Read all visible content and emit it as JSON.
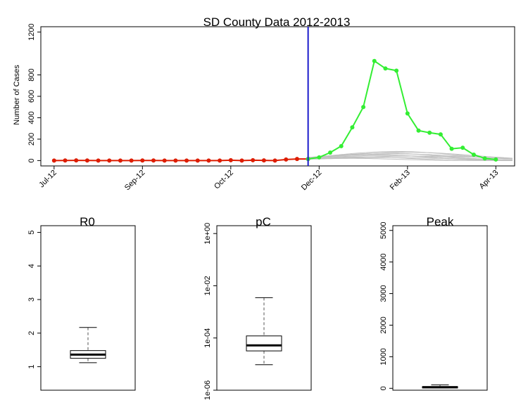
{
  "chart_data": [
    {
      "type": "line",
      "title": "SD County Data 2012-2013",
      "ylabel": "Number of Cases",
      "xlabel": "",
      "ylim": [
        -50,
        1250
      ],
      "yticks": [
        0,
        200,
        400,
        600,
        800,
        1200
      ],
      "x_tick_labels": [
        "Jul-12",
        "Sep-12",
        "Oct-12",
        "Dec-12",
        "Feb-13",
        "Apr-13"
      ],
      "x_tick_weeks": [
        0,
        8,
        16,
        24,
        32,
        40
      ],
      "x_range_weeks": [
        -1.2,
        41.7
      ],
      "cutoff_week": 23,
      "colors": {
        "observed": "#dd1c00",
        "future": "#33ee33",
        "cutoff": "#1a1acc",
        "projections": "#c0c0c0"
      },
      "series": [
        {
          "x": [
            0,
            1,
            2,
            3,
            4,
            5,
            6,
            7,
            8,
            9,
            10,
            11,
            12,
            13,
            14,
            15,
            16,
            17,
            18,
            19,
            20,
            21,
            22,
            23
          ],
          "values": [
            0,
            1,
            2,
            1,
            0,
            0,
            0,
            0,
            1,
            1,
            0,
            0,
            0,
            0,
            0,
            0,
            3,
            0,
            3,
            2,
            0,
            10,
            15,
            15
          ],
          "color": "#dd1c00"
        },
        {
          "x": [
            23,
            24,
            25,
            26,
            27,
            28,
            29,
            30,
            31,
            32,
            33,
            34,
            35,
            36,
            37,
            38,
            39,
            40
          ],
          "values": [
            15,
            30,
            75,
            135,
            310,
            500,
            930,
            860,
            840,
            440,
            280,
            260,
            245,
            110,
            120,
            55,
            20,
            10
          ],
          "color": "#33ee33"
        }
      ],
      "projections": [
        {
          "peak_week": 31,
          "peak": 85,
          "width": 5.5
        },
        {
          "peak_week": 32,
          "peak": 78,
          "width": 6.0
        },
        {
          "peak_week": 30,
          "peak": 70,
          "width": 5.0
        },
        {
          "peak_week": 31,
          "peak": 62,
          "width": 6.5
        },
        {
          "peak_week": 29,
          "peak": 55,
          "width": 4.5
        },
        {
          "peak_week": 30,
          "peak": 48,
          "width": 5.5
        },
        {
          "peak_week": 33,
          "peak": 42,
          "width": 7.0
        },
        {
          "peak_week": 28,
          "peak": 35,
          "width": 4.0
        },
        {
          "peak_week": 30,
          "peak": 28,
          "width": 6.0
        },
        {
          "peak_week": 27,
          "peak": 20,
          "width": 4.0
        }
      ]
    },
    {
      "type": "box",
      "title": "R0",
      "ylim": [
        0.3,
        5.2
      ],
      "yticks": [
        1,
        2,
        3,
        4,
        5
      ],
      "scale": "linear",
      "box": {
        "whisker_low": 1.12,
        "q1": 1.25,
        "median": 1.36,
        "q3": 1.48,
        "whisker_high": 2.17
      }
    },
    {
      "type": "box",
      "title": "pC",
      "ylim": [
        1e-06,
        2.0
      ],
      "yticks": [
        1e-06,
        0.0001,
        0.01,
        1.0
      ],
      "ytick_labels": [
        "1e-06",
        "1e-04",
        "1e-02",
        "1e+00"
      ],
      "scale": "log",
      "box": {
        "whisker_low": 9.5e-06,
        "q1": 3.2e-05,
        "median": 5.2e-05,
        "q3": 0.00012,
        "whisker_high": 0.0035
      }
    },
    {
      "type": "box",
      "title": "Peak",
      "ylim": [
        -60,
        5150
      ],
      "yticks": [
        0,
        1000,
        2000,
        3000,
        4000,
        5000
      ],
      "scale": "linear",
      "box": {
        "whisker_low": 15,
        "q1": 22,
        "median": 35,
        "q3": 55,
        "whisker_high": 110
      }
    }
  ]
}
